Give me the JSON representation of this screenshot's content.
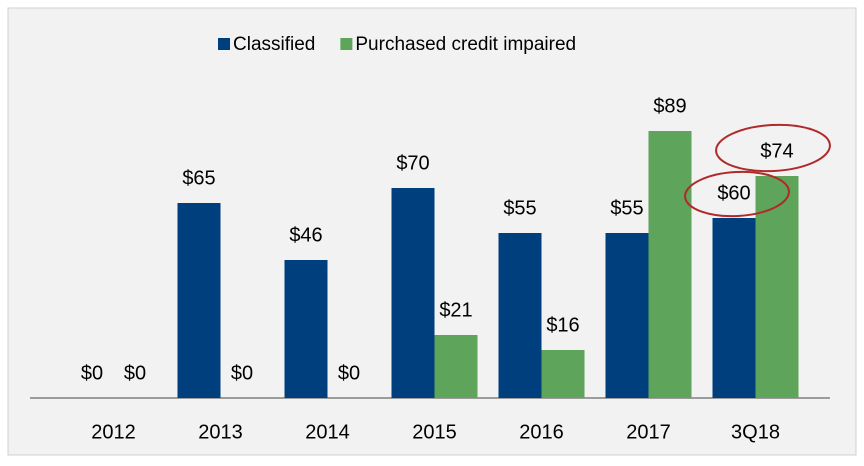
{
  "chart_data": {
    "type": "bar",
    "categories": [
      "2012",
      "2013",
      "2014",
      "2015",
      "2016",
      "2017",
      "3Q18"
    ],
    "series": [
      {
        "name": "Classified",
        "color": "#003f7d",
        "values": [
          0,
          65,
          46,
          70,
          55,
          55,
          60
        ],
        "value_labels": [
          "$0",
          "$65",
          "$46",
          "$70",
          "$55",
          "$55",
          "$60"
        ]
      },
      {
        "name": "Purchased credit impaired",
        "color": "#5ea45a",
        "values": [
          0,
          0,
          0,
          21,
          16,
          89,
          74
        ],
        "value_labels": [
          "$0",
          "$0",
          "$0",
          "$21",
          "$16",
          "$89",
          "$74"
        ]
      }
    ],
    "legend": "top"
  }
}
